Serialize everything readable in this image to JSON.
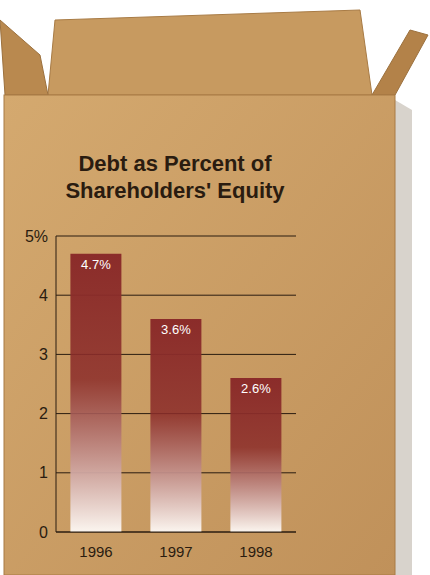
{
  "chart_data": {
    "type": "bar",
    "title": "Debt as Percent of Shareholders' Equity",
    "categories": [
      "1996",
      "1997",
      "1998"
    ],
    "values": [
      4.7,
      3.6,
      2.6
    ],
    "value_labels": [
      "4.7%",
      "3.6%",
      "2.6%"
    ],
    "color": "#8b2c2a",
    "ylim": [
      0,
      5
    ],
    "yticks": [
      0,
      1,
      2,
      3,
      4,
      {
        "value": 5,
        "label": "5%"
      }
    ],
    "grid": true,
    "data_labels": true
  }
}
